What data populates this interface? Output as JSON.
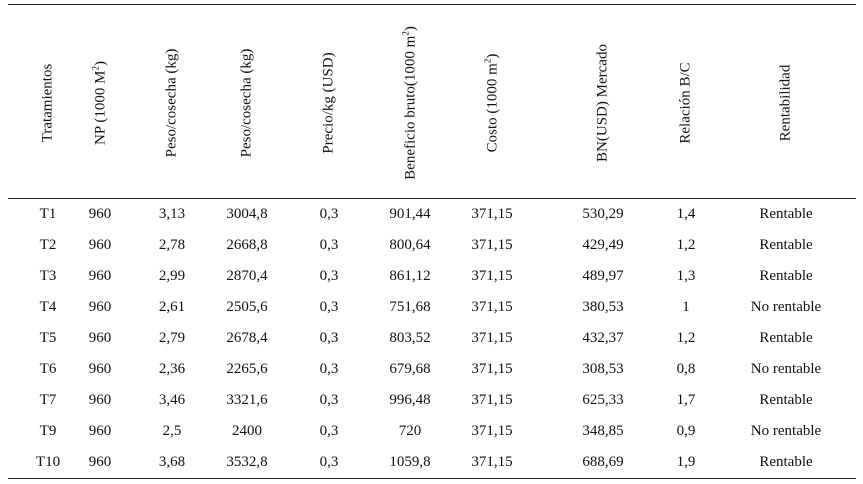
{
  "table": {
    "headers": [
      {
        "base": "Tratamientos",
        "sup": "",
        "close": ""
      },
      {
        "base": "NP (1000 M",
        "sup": "2",
        "close": ")"
      },
      {
        "base": "Peso/cosecha (kg)",
        "sup": "",
        "close": ""
      },
      {
        "base": "Peso/cosecha (kg)",
        "sup": "",
        "close": ""
      },
      {
        "base": "Precio/kg (USD)",
        "sup": "",
        "close": ""
      },
      {
        "base": "Beneficio bruto(1000 m",
        "sup": "2",
        "close": ")"
      },
      {
        "base": "Costo (1000 m",
        "sup": "2",
        "close": ")"
      },
      {
        "base": "BN(USD) Mercado",
        "sup": "",
        "close": ""
      },
      {
        "base": "Relación B/C",
        "sup": "",
        "close": ""
      },
      {
        "base": "Rentabilidad",
        "sup": "",
        "close": ""
      }
    ],
    "rows": [
      [
        "T1",
        "960",
        "3,13",
        "3004,8",
        "0,3",
        "901,44",
        "371,15",
        "530,29",
        "1,4",
        "Rentable"
      ],
      [
        "T2",
        "960",
        "2,78",
        "2668,8",
        "0,3",
        "800,64",
        "371,15",
        "429,49",
        "1,2",
        "Rentable"
      ],
      [
        "T3",
        "960",
        "2,99",
        "2870,4",
        "0,3",
        "861,12",
        "371,15",
        "489,97",
        "1,3",
        "Rentable"
      ],
      [
        "T4",
        "960",
        "2,61",
        "2505,6",
        "0,3",
        "751,68",
        "371,15",
        "380,53",
        "1",
        "No rentable"
      ],
      [
        "T5",
        "960",
        "2,79",
        "2678,4",
        "0,3",
        "803,52",
        "371,15",
        "432,37",
        "1,2",
        "Rentable"
      ],
      [
        "T6",
        "960",
        "2,36",
        "2265,6",
        "0,3",
        "679,68",
        "371,15",
        "308,53",
        "0,8",
        "No rentable"
      ],
      [
        "T7",
        "960",
        "3,46",
        "3321,6",
        "0,3",
        "996,48",
        "371,15",
        "625,33",
        "1,7",
        "Rentable"
      ],
      [
        "T9",
        "960",
        "2,5",
        "2400",
        "0,3",
        "720",
        "371,15",
        "348,85",
        "0,9",
        "No rentable"
      ],
      [
        "T10",
        "960",
        "3,68",
        "3532,8",
        "0,3",
        "1059,8",
        "371,15",
        "688,69",
        "1,9",
        "Rentable"
      ]
    ]
  }
}
